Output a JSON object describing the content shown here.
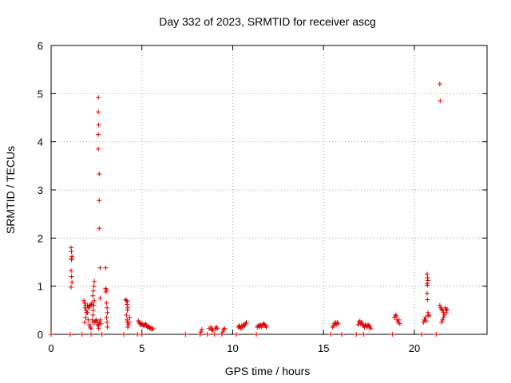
{
  "chart_data": {
    "type": "scatter",
    "title": "Day 332 of 2023, SRMTID for receiver ascg",
    "xlabel": "GPS time / hours",
    "ylabel": "SRMTID / TECUs",
    "xlim": [
      0,
      24
    ],
    "ylim": [
      0,
      6
    ],
    "xticks": [
      0,
      5,
      10,
      15,
      20
    ],
    "yticks": [
      0,
      1,
      2,
      3,
      4,
      5,
      6
    ],
    "xtick_labels": [
      "0",
      "5",
      "10",
      "15",
      "20"
    ],
    "ytick_labels": [
      "0",
      "1",
      "2",
      "3",
      "4",
      "5",
      "6"
    ],
    "grid": true,
    "marker": "+",
    "color": "#dd0000",
    "series": [
      {
        "name": "SRMTID",
        "points": [
          [
            0.0,
            0.0
          ],
          [
            1.05,
            0.0
          ],
          [
            1.1,
            1.8
          ],
          [
            1.12,
            1.72
          ],
          [
            1.15,
            1.62
          ],
          [
            1.13,
            1.58
          ],
          [
            1.12,
            1.55
          ],
          [
            1.1,
            1.32
          ],
          [
            1.12,
            1.2
          ],
          [
            1.15,
            1.08
          ],
          [
            1.1,
            0.98
          ],
          [
            1.7,
            0.0
          ],
          [
            1.8,
            0.7
          ],
          [
            1.85,
            0.65
          ],
          [
            1.9,
            0.6
          ],
          [
            1.88,
            0.55
          ],
          [
            1.92,
            0.5
          ],
          [
            1.95,
            0.45
          ],
          [
            1.9,
            0.35
          ],
          [
            1.85,
            0.25
          ],
          [
            2.0,
            0.6
          ],
          [
            2.05,
            0.55
          ],
          [
            2.1,
            0.6
          ],
          [
            2.15,
            0.58
          ],
          [
            2.2,
            0.62
          ],
          [
            2.25,
            0.65
          ],
          [
            2.0,
            0.45
          ],
          [
            2.05,
            0.3
          ],
          [
            2.1,
            0.2
          ],
          [
            2.15,
            0.15
          ],
          [
            2.2,
            0.12
          ],
          [
            2.3,
            0.25
          ],
          [
            2.28,
            0.3
          ],
          [
            2.3,
            0.4
          ],
          [
            2.32,
            0.5
          ],
          [
            2.35,
            0.6
          ],
          [
            2.38,
            0.7
          ],
          [
            2.3,
            0.8
          ],
          [
            2.32,
            0.9
          ],
          [
            2.35,
            1.0
          ],
          [
            2.38,
            1.1
          ],
          [
            2.2,
            0.0
          ],
          [
            2.4,
            0.25
          ],
          [
            2.45,
            0.28
          ],
          [
            2.5,
            0.3
          ],
          [
            2.55,
            0.25
          ],
          [
            2.6,
            0.2
          ],
          [
            2.65,
            0.25
          ],
          [
            2.7,
            0.3
          ],
          [
            2.75,
            0.22
          ],
          [
            2.58,
            0.18
          ],
          [
            2.62,
            0.12
          ],
          [
            2.6,
            4.92
          ],
          [
            2.6,
            4.62
          ],
          [
            2.62,
            4.35
          ],
          [
            2.6,
            4.15
          ],
          [
            2.6,
            3.85
          ],
          [
            2.65,
            3.33
          ],
          [
            2.65,
            2.78
          ],
          [
            2.65,
            2.2
          ],
          [
            2.7,
            1.38
          ],
          [
            2.7,
            0.75
          ],
          [
            2.8,
            0.0
          ],
          [
            3.0,
            1.38
          ],
          [
            3.0,
            0.95
          ],
          [
            3.05,
            0.92
          ],
          [
            3.02,
            0.88
          ],
          [
            3.05,
            0.65
          ],
          [
            3.08,
            0.55
          ],
          [
            3.1,
            0.45
          ],
          [
            3.05,
            0.35
          ],
          [
            3.08,
            0.25
          ],
          [
            3.1,
            0.15
          ],
          [
            4.0,
            0.0
          ],
          [
            4.1,
            0.72
          ],
          [
            4.15,
            0.7
          ],
          [
            4.2,
            0.68
          ],
          [
            4.18,
            0.62
          ],
          [
            4.22,
            0.55
          ],
          [
            4.2,
            0.5
          ],
          [
            4.15,
            0.4
          ],
          [
            4.18,
            0.3
          ],
          [
            4.2,
            0.25
          ],
          [
            4.25,
            0.2
          ],
          [
            4.22,
            0.15
          ],
          [
            4.3,
            0.25
          ],
          [
            4.32,
            0.35
          ],
          [
            4.75,
            0.0
          ],
          [
            4.8,
            0.28
          ],
          [
            4.85,
            0.25
          ],
          [
            4.9,
            0.22
          ],
          [
            4.95,
            0.2
          ],
          [
            5.0,
            0.22
          ],
          [
            5.05,
            0.2
          ],
          [
            5.1,
            0.18
          ],
          [
            5.15,
            0.2
          ],
          [
            5.2,
            0.22
          ],
          [
            5.25,
            0.18
          ],
          [
            5.3,
            0.15
          ],
          [
            5.35,
            0.17
          ],
          [
            5.4,
            0.15
          ],
          [
            5.45,
            0.12
          ],
          [
            5.5,
            0.14
          ],
          [
            5.55,
            0.1
          ],
          [
            5.6,
            0.12
          ],
          [
            5.0,
            0.0
          ],
          [
            7.4,
            0.0
          ],
          [
            8.2,
            0.0
          ],
          [
            8.25,
            0.05
          ],
          [
            8.3,
            0.1
          ],
          [
            8.6,
            0.0
          ],
          [
            8.7,
            0.12
          ],
          [
            8.8,
            0.15
          ],
          [
            8.85,
            0.1
          ],
          [
            8.9,
            0.08
          ],
          [
            9.0,
            0.0
          ],
          [
            9.05,
            0.12
          ],
          [
            9.1,
            0.15
          ],
          [
            9.15,
            0.12
          ],
          [
            9.4,
            0.0
          ],
          [
            9.45,
            0.05
          ],
          [
            9.5,
            0.1
          ],
          [
            9.55,
            0.12
          ],
          [
            10.2,
            0.0
          ],
          [
            10.3,
            0.15
          ],
          [
            10.35,
            0.18
          ],
          [
            10.4,
            0.15
          ],
          [
            10.45,
            0.12
          ],
          [
            10.5,
            0.18
          ],
          [
            10.55,
            0.15
          ],
          [
            10.6,
            0.2
          ],
          [
            10.65,
            0.18
          ],
          [
            10.7,
            0.22
          ],
          [
            10.75,
            0.25
          ],
          [
            11.3,
            0.0
          ],
          [
            11.35,
            0.15
          ],
          [
            11.4,
            0.18
          ],
          [
            11.45,
            0.15
          ],
          [
            11.5,
            0.2
          ],
          [
            11.55,
            0.18
          ],
          [
            11.6,
            0.15
          ],
          [
            11.65,
            0.2
          ],
          [
            11.7,
            0.22
          ],
          [
            11.75,
            0.2
          ],
          [
            11.8,
            0.18
          ],
          [
            11.85,
            0.15
          ],
          [
            15.4,
            0.0
          ],
          [
            15.5,
            0.15
          ],
          [
            15.55,
            0.18
          ],
          [
            15.6,
            0.22
          ],
          [
            15.65,
            0.25
          ],
          [
            15.7,
            0.2
          ],
          [
            15.75,
            0.25
          ],
          [
            15.8,
            0.22
          ],
          [
            16.0,
            0.0
          ],
          [
            16.8,
            0.0
          ],
          [
            16.9,
            0.2
          ],
          [
            16.95,
            0.25
          ],
          [
            17.0,
            0.28
          ],
          [
            17.05,
            0.22
          ],
          [
            17.1,
            0.25
          ],
          [
            17.15,
            0.2
          ],
          [
            17.2,
            0.18
          ],
          [
            17.25,
            0.15
          ],
          [
            17.3,
            0.2
          ],
          [
            17.35,
            0.18
          ],
          [
            17.4,
            0.15
          ],
          [
            17.45,
            0.2
          ],
          [
            17.5,
            0.18
          ],
          [
            17.55,
            0.15
          ],
          [
            17.6,
            0.12
          ],
          [
            17.2,
            0.0
          ],
          [
            18.8,
            0.0
          ],
          [
            18.9,
            0.35
          ],
          [
            18.95,
            0.4
          ],
          [
            19.0,
            0.38
          ],
          [
            19.05,
            0.3
          ],
          [
            19.1,
            0.25
          ],
          [
            19.15,
            0.3
          ],
          [
            19.2,
            0.22
          ],
          [
            20.4,
            0.0
          ],
          [
            20.5,
            0.25
          ],
          [
            20.55,
            0.3
          ],
          [
            20.6,
            0.35
          ],
          [
            20.65,
            0.28
          ],
          [
            20.7,
            1.25
          ],
          [
            20.72,
            1.18
          ],
          [
            20.75,
            1.12
          ],
          [
            20.7,
            1.05
          ],
          [
            20.72,
            1.02
          ],
          [
            20.7,
            0.85
          ],
          [
            20.72,
            0.72
          ],
          [
            20.75,
            0.45
          ],
          [
            20.78,
            0.4
          ],
          [
            20.8,
            0.38
          ],
          [
            21.2,
            0.0
          ],
          [
            21.4,
            5.2
          ],
          [
            21.42,
            4.85
          ],
          [
            21.4,
            0.6
          ],
          [
            21.45,
            0.55
          ],
          [
            21.5,
            0.52
          ],
          [
            21.55,
            0.5
          ],
          [
            21.6,
            0.45
          ],
          [
            21.65,
            0.4
          ],
          [
            21.6,
            0.35
          ],
          [
            21.55,
            0.3
          ],
          [
            21.5,
            0.25
          ],
          [
            21.7,
            0.55
          ],
          [
            21.75,
            0.5
          ],
          [
            21.8,
            0.52
          ],
          [
            21.75,
            0.45
          ]
        ]
      }
    ]
  }
}
